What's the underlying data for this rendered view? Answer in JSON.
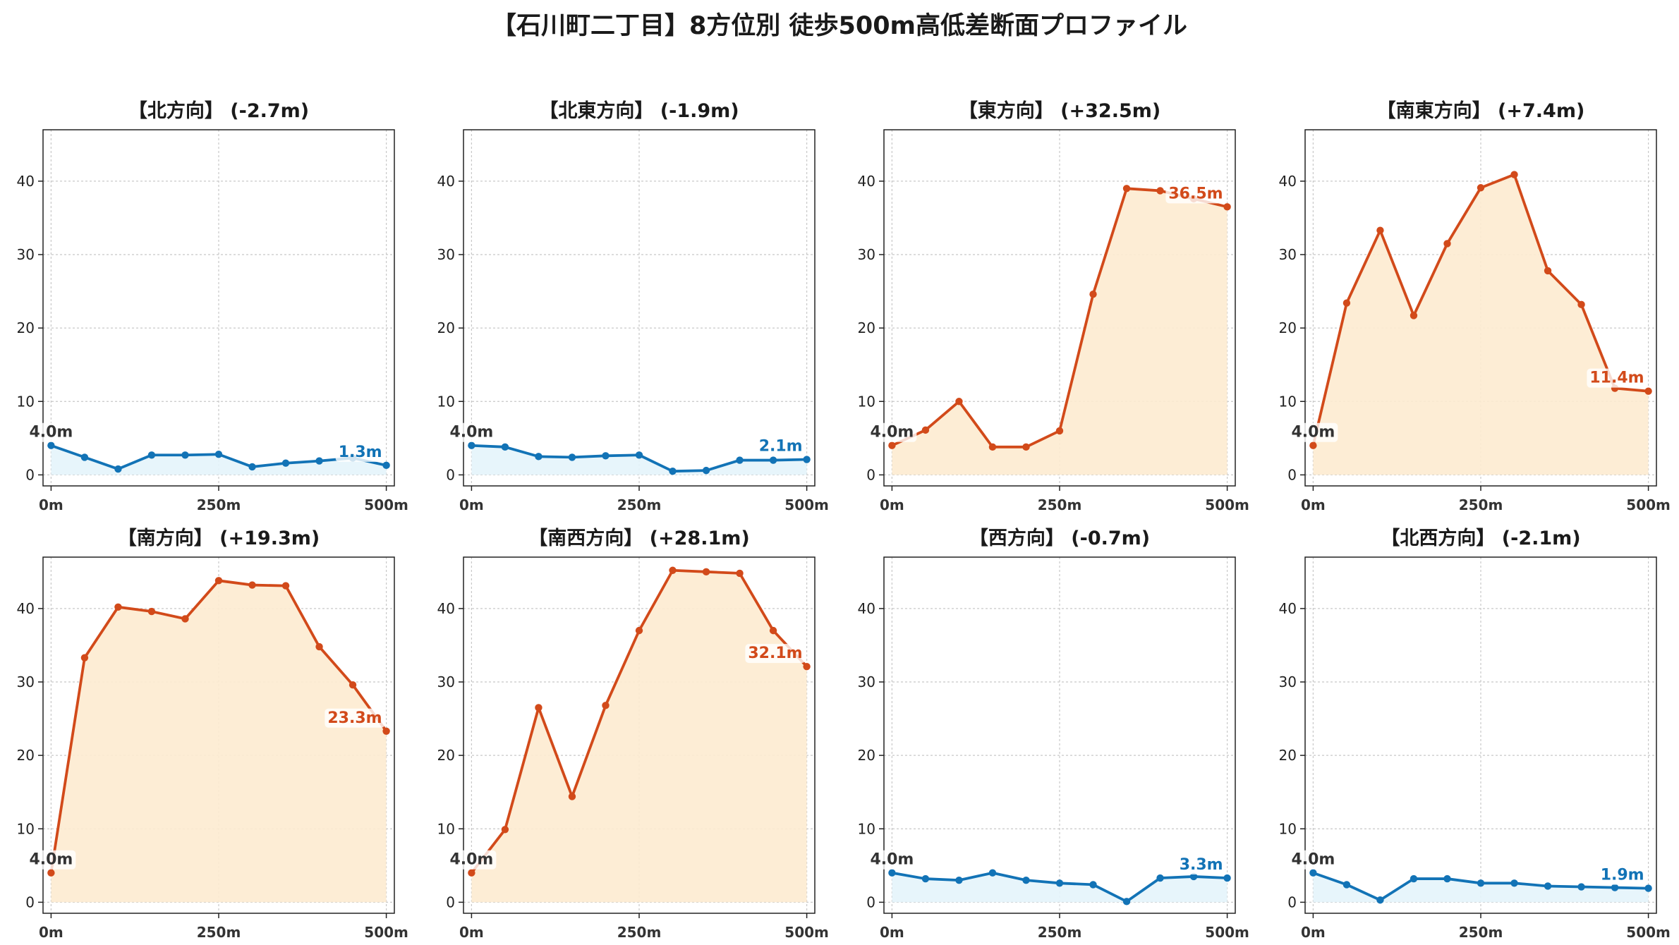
{
  "title": "【石川町二丁目】8方位別 徒歩500m高低差断面プロファイル",
  "colors": {
    "up_line": "#d24a1a",
    "up_fill": "#fdebd0",
    "down_line": "#1273b6",
    "down_fill": "#e4f4fb",
    "start_label": "#333333",
    "grid": "#c8c8c8"
  },
  "chart_data": [
    {
      "type": "area",
      "title": "【北方向】 (-2.7m)",
      "trend": "down",
      "x": [
        0,
        50,
        100,
        150,
        200,
        250,
        300,
        350,
        400,
        450,
        500
      ],
      "values": [
        4.0,
        2.4,
        0.8,
        2.7,
        2.7,
        2.8,
        1.1,
        1.6,
        1.9,
        2.3,
        1.3
      ],
      "x_ticks": [
        0,
        250,
        500
      ],
      "x_tick_labels": [
        "0m",
        "250m",
        "500m"
      ],
      "y_ticks": [
        0,
        10,
        20,
        30,
        40
      ],
      "ylim": [
        -1.5,
        47
      ],
      "xlim": [
        -12,
        512
      ],
      "start_label": "4.0m",
      "end_label": "1.3m",
      "grid": true
    },
    {
      "type": "area",
      "title": "【北東方向】 (-1.9m)",
      "trend": "down",
      "x": [
        0,
        50,
        100,
        150,
        200,
        250,
        300,
        350,
        400,
        450,
        500
      ],
      "values": [
        4.0,
        3.8,
        2.5,
        2.4,
        2.6,
        2.7,
        0.5,
        0.6,
        2.0,
        2.0,
        2.1
      ],
      "x_ticks": [
        0,
        250,
        500
      ],
      "x_tick_labels": [
        "0m",
        "250m",
        "500m"
      ],
      "y_ticks": [
        0,
        10,
        20,
        30,
        40
      ],
      "ylim": [
        -1.5,
        47
      ],
      "xlim": [
        -12,
        512
      ],
      "start_label": "4.0m",
      "end_label": "2.1m",
      "grid": true
    },
    {
      "type": "area",
      "title": "【東方向】 (+32.5m)",
      "trend": "up",
      "x": [
        0,
        50,
        100,
        150,
        200,
        250,
        300,
        350,
        400,
        450,
        500
      ],
      "values": [
        4.0,
        6.1,
        10.0,
        3.8,
        3.8,
        6.0,
        24.6,
        39.0,
        38.7,
        37.6,
        36.5
      ],
      "x_ticks": [
        0,
        250,
        500
      ],
      "x_tick_labels": [
        "0m",
        "250m",
        "500m"
      ],
      "y_ticks": [
        0,
        10,
        20,
        30,
        40
      ],
      "ylim": [
        -1.5,
        47
      ],
      "xlim": [
        -12,
        512
      ],
      "start_label": "4.0m",
      "end_label": "36.5m",
      "grid": true
    },
    {
      "type": "area",
      "title": "【南東方向】 (+7.4m)",
      "trend": "up",
      "x": [
        0,
        50,
        100,
        150,
        200,
        250,
        300,
        350,
        400,
        450,
        500
      ],
      "values": [
        4.0,
        23.4,
        33.3,
        21.7,
        31.5,
        39.1,
        40.9,
        27.8,
        23.2,
        11.8,
        11.4
      ],
      "x_ticks": [
        0,
        250,
        500
      ],
      "x_tick_labels": [
        "0m",
        "250m",
        "500m"
      ],
      "y_ticks": [
        0,
        10,
        20,
        30,
        40
      ],
      "ylim": [
        -1.5,
        47
      ],
      "xlim": [
        -12,
        512
      ],
      "start_label": "4.0m",
      "end_label": "11.4m",
      "grid": true
    },
    {
      "type": "area",
      "title": "【南方向】 (+19.3m)",
      "trend": "up",
      "x": [
        0,
        50,
        100,
        150,
        200,
        250,
        300,
        350,
        400,
        450,
        500
      ],
      "values": [
        4.0,
        33.3,
        40.2,
        39.6,
        38.6,
        43.8,
        43.2,
        43.1,
        34.8,
        29.6,
        23.3
      ],
      "x_ticks": [
        0,
        250,
        500
      ],
      "x_tick_labels": [
        "0m",
        "250m",
        "500m"
      ],
      "y_ticks": [
        0,
        10,
        20,
        30,
        40
      ],
      "ylim": [
        -1.5,
        47
      ],
      "xlim": [
        -12,
        512
      ],
      "start_label": "4.0m",
      "end_label": "23.3m",
      "grid": true
    },
    {
      "type": "area",
      "title": "【南西方向】 (+28.1m)",
      "trend": "up",
      "x": [
        0,
        50,
        100,
        150,
        200,
        250,
        300,
        350,
        400,
        450,
        500
      ],
      "values": [
        4.0,
        9.9,
        26.5,
        14.4,
        26.8,
        37.0,
        45.2,
        45.0,
        44.8,
        37.0,
        32.1
      ],
      "x_ticks": [
        0,
        250,
        500
      ],
      "x_tick_labels": [
        "0m",
        "250m",
        "500m"
      ],
      "y_ticks": [
        0,
        10,
        20,
        30,
        40
      ],
      "ylim": [
        -1.5,
        47
      ],
      "xlim": [
        -12,
        512
      ],
      "start_label": "4.0m",
      "end_label": "32.1m",
      "grid": true
    },
    {
      "type": "area",
      "title": "【西方向】 (-0.7m)",
      "trend": "down",
      "x": [
        0,
        50,
        100,
        150,
        200,
        250,
        300,
        350,
        400,
        450,
        500
      ],
      "values": [
        4.0,
        3.2,
        3.0,
        4.0,
        3.0,
        2.6,
        2.4,
        0.1,
        3.3,
        3.5,
        3.3
      ],
      "x_ticks": [
        0,
        250,
        500
      ],
      "x_tick_labels": [
        "0m",
        "250m",
        "500m"
      ],
      "y_ticks": [
        0,
        10,
        20,
        30,
        40
      ],
      "ylim": [
        -1.5,
        47
      ],
      "xlim": [
        -12,
        512
      ],
      "start_label": "4.0m",
      "end_label": "3.3m",
      "grid": true
    },
    {
      "type": "area",
      "title": "【北西方向】 (-2.1m)",
      "trend": "down",
      "x": [
        0,
        50,
        100,
        150,
        200,
        250,
        300,
        350,
        400,
        450,
        500
      ],
      "values": [
        4.0,
        2.4,
        0.3,
        3.2,
        3.2,
        2.6,
        2.6,
        2.2,
        2.1,
        2.0,
        1.9
      ],
      "x_ticks": [
        0,
        250,
        500
      ],
      "x_tick_labels": [
        "0m",
        "250m",
        "500m"
      ],
      "y_ticks": [
        0,
        10,
        20,
        30,
        40
      ],
      "ylim": [
        -1.5,
        47
      ],
      "xlim": [
        -12,
        512
      ],
      "start_label": "4.0m",
      "end_label": "1.9m",
      "grid": true
    }
  ]
}
